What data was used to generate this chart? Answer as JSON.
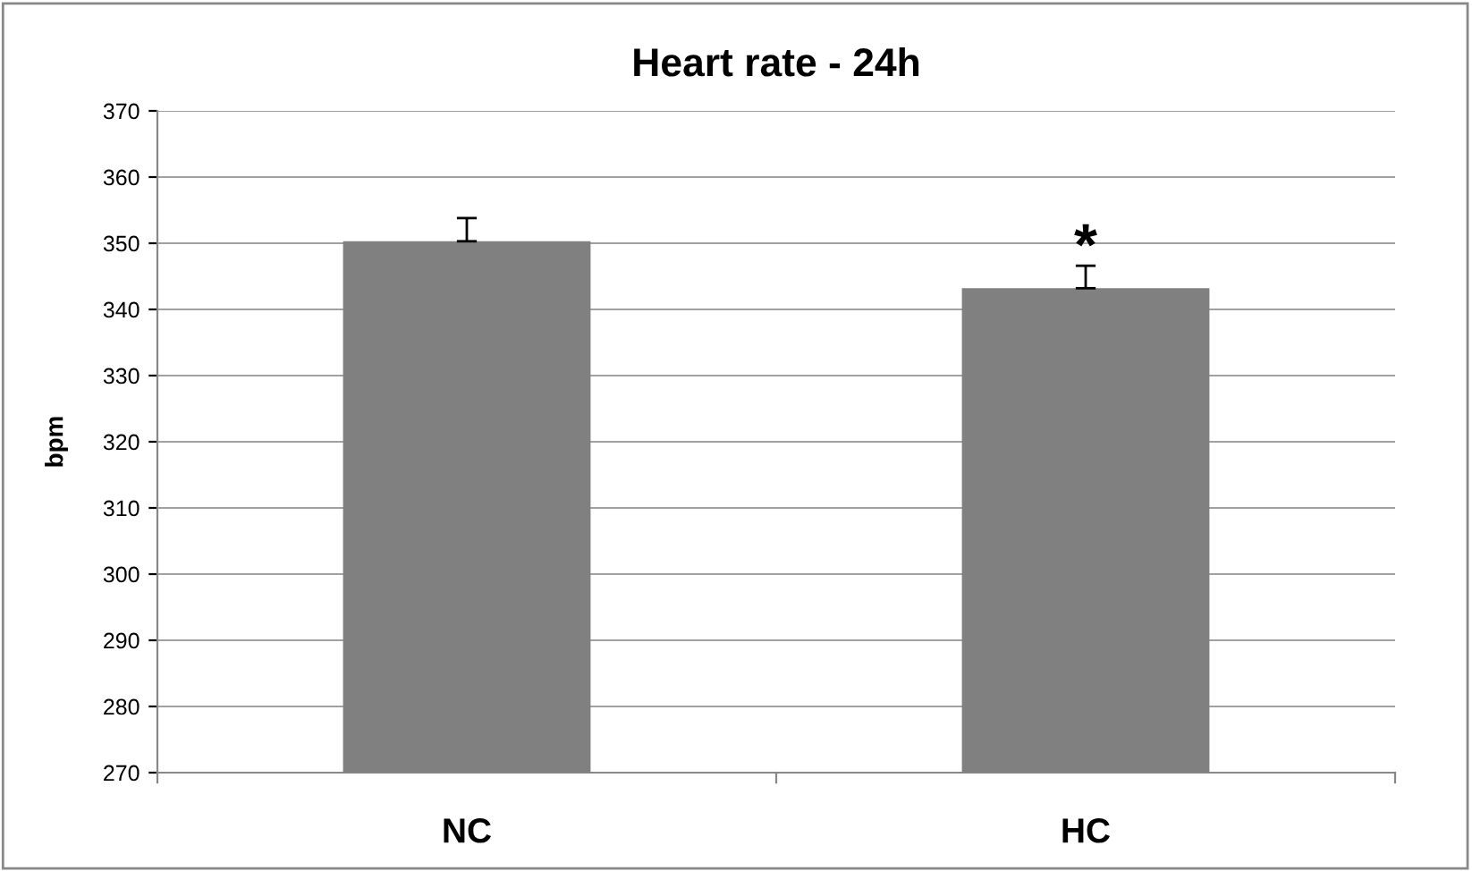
{
  "chart_data": {
    "type": "bar",
    "title": "Heart rate - 24h",
    "ylabel": "bpm",
    "categories": [
      "NC",
      "HC"
    ],
    "values": [
      350.3,
      343.2
    ],
    "color": "#808080",
    "errors": [
      [
        350.3,
        353.8
      ],
      [
        343.2,
        346.6
      ]
    ],
    "annotations": [
      "*"
    ],
    "ylim": [
      270,
      370
    ],
    "yticks": [
      270,
      280,
      290,
      300,
      310,
      320,
      330,
      340,
      350,
      360,
      370
    ],
    "grid": "y",
    "legend": false
  }
}
